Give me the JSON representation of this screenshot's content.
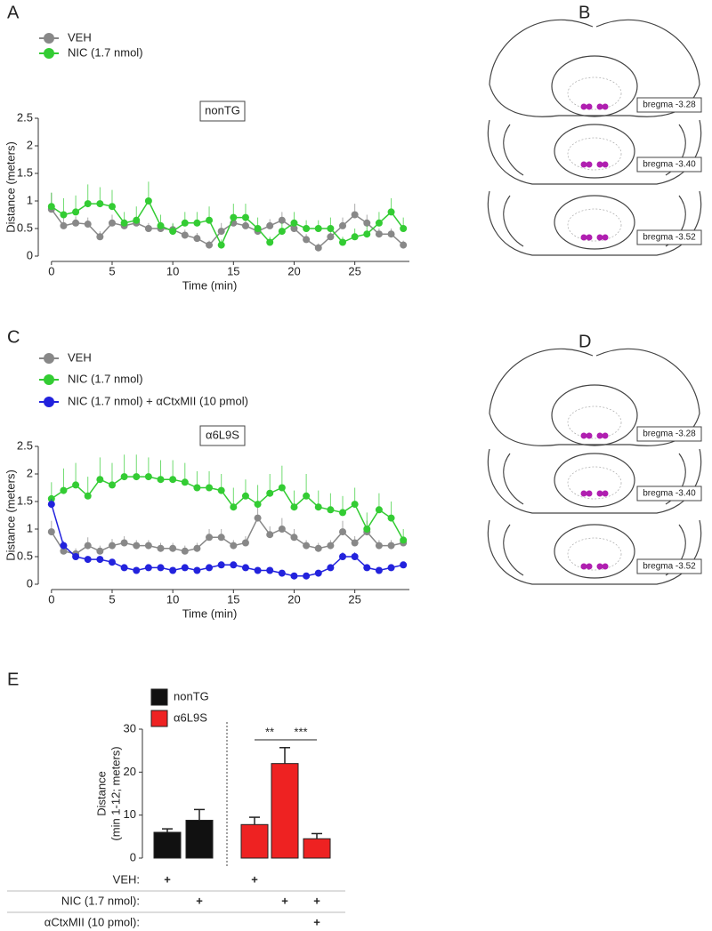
{
  "chart_data": [
    {
      "type": "line",
      "panel": "A",
      "annotation": "nonTG",
      "x_label": "Time (min)",
      "y_label": "Distance (meters)",
      "x": [
        0,
        1,
        2,
        3,
        4,
        5,
        6,
        7,
        8,
        9,
        10,
        11,
        12,
        13,
        14,
        15,
        16,
        17,
        18,
        19,
        20,
        21,
        22,
        23,
        24,
        25,
        26,
        27,
        28,
        29
      ],
      "xlim": [
        -0.5,
        29.5
      ],
      "xticks": [
        0,
        5,
        10,
        15,
        20,
        25
      ],
      "ylim": [
        0,
        2.5
      ],
      "yticks": [
        0,
        0.5,
        1,
        1.5,
        2,
        2.5
      ],
      "series": [
        {
          "name": "VEH",
          "color": "#888888",
          "values": [
            0.85,
            0.55,
            0.6,
            0.58,
            0.35,
            0.6,
            0.55,
            0.6,
            0.5,
            0.5,
            0.48,
            0.38,
            0.32,
            0.2,
            0.45,
            0.6,
            0.55,
            0.45,
            0.55,
            0.65,
            0.5,
            0.3,
            0.15,
            0.35,
            0.55,
            0.75,
            0.6,
            0.4,
            0.4,
            0.2
          ],
          "errors": [
            0.3,
            0.15,
            0.12,
            0.12,
            0.1,
            0.15,
            0.12,
            0.12,
            0.1,
            0.1,
            0.1,
            0.1,
            0.1,
            0.08,
            0.15,
            0.15,
            0.12,
            0.1,
            0.12,
            0.15,
            0.12,
            0.1,
            0.08,
            0.1,
            0.15,
            0.2,
            0.15,
            0.1,
            0.1,
            0.08
          ]
        },
        {
          "name": "NIC (1.7 nmol)",
          "color": "#33cc33",
          "values": [
            0.9,
            0.75,
            0.8,
            0.95,
            0.95,
            0.9,
            0.6,
            0.65,
            1.0,
            0.55,
            0.45,
            0.6,
            0.6,
            0.65,
            0.2,
            0.7,
            0.7,
            0.5,
            0.25,
            0.45,
            0.6,
            0.5,
            0.5,
            0.5,
            0.25,
            0.35,
            0.4,
            0.6,
            0.8,
            0.5
          ],
          "errors": [
            0.25,
            0.3,
            0.3,
            0.35,
            0.3,
            0.3,
            0.2,
            0.25,
            0.35,
            0.2,
            0.15,
            0.2,
            0.2,
            0.25,
            0.1,
            0.25,
            0.25,
            0.2,
            0.1,
            0.15,
            0.2,
            0.15,
            0.15,
            0.2,
            0.1,
            0.15,
            0.15,
            0.2,
            0.25,
            0.2
          ]
        }
      ]
    },
    {
      "type": "line",
      "panel": "C",
      "annotation": "α6L9S",
      "x_label": "Time (min)",
      "y_label": "Distance (meters)",
      "x": [
        0,
        1,
        2,
        3,
        4,
        5,
        6,
        7,
        8,
        9,
        10,
        11,
        12,
        13,
        14,
        15,
        16,
        17,
        18,
        19,
        20,
        21,
        22,
        23,
        24,
        25,
        26,
        27,
        28,
        29
      ],
      "xlim": [
        -0.5,
        29.5
      ],
      "xticks": [
        0,
        5,
        10,
        15,
        20,
        25
      ],
      "ylim": [
        0,
        2.5
      ],
      "yticks": [
        0,
        0.5,
        1,
        1.5,
        2,
        2.5
      ],
      "series": [
        {
          "name": "VEH",
          "color": "#888888",
          "values": [
            0.95,
            0.6,
            0.55,
            0.7,
            0.6,
            0.7,
            0.75,
            0.7,
            0.7,
            0.65,
            0.65,
            0.6,
            0.65,
            0.85,
            0.85,
            0.7,
            0.75,
            1.2,
            0.9,
            1.0,
            0.85,
            0.7,
            0.65,
            0.7,
            0.95,
            0.75,
            0.95,
            0.7,
            0.7,
            0.75
          ],
          "errors": [
            0.2,
            0.15,
            0.1,
            0.15,
            0.1,
            0.12,
            0.12,
            0.1,
            0.1,
            0.1,
            0.1,
            0.1,
            0.1,
            0.15,
            0.15,
            0.1,
            0.12,
            0.3,
            0.15,
            0.2,
            0.15,
            0.1,
            0.1,
            0.1,
            0.2,
            0.12,
            0.2,
            0.1,
            0.1,
            0.1
          ]
        },
        {
          "name": "NIC (1.7 nmol)",
          "color": "#33cc33",
          "values": [
            1.55,
            1.7,
            1.8,
            1.6,
            1.9,
            1.8,
            1.95,
            1.95,
            1.95,
            1.9,
            1.9,
            1.85,
            1.75,
            1.75,
            1.7,
            1.4,
            1.6,
            1.45,
            1.65,
            1.75,
            1.4,
            1.6,
            1.4,
            1.35,
            1.3,
            1.45,
            1.0,
            1.35,
            1.2,
            0.8
          ],
          "errors": [
            0.3,
            0.4,
            0.4,
            0.35,
            0.4,
            0.4,
            0.4,
            0.4,
            0.35,
            0.35,
            0.35,
            0.35,
            0.3,
            0.3,
            0.3,
            0.35,
            0.3,
            0.35,
            0.35,
            0.4,
            0.3,
            0.4,
            0.3,
            0.3,
            0.3,
            0.3,
            0.3,
            0.3,
            0.3,
            0.2
          ]
        },
        {
          "name": "NIC (1.7 nmol) + αCtxMII (10 pmol)",
          "color": "#2222dd",
          "values": [
            1.45,
            0.7,
            0.5,
            0.45,
            0.45,
            0.4,
            0.3,
            0.25,
            0.3,
            0.3,
            0.25,
            0.3,
            0.25,
            0.3,
            0.35,
            0.35,
            0.3,
            0.25,
            0.25,
            0.2,
            0.15,
            0.15,
            0.2,
            0.3,
            0.5,
            0.5,
            0.3,
            0.25,
            0.3,
            0.35
          ],
          "errors": [
            0.1,
            0.08,
            0.06,
            0.05,
            0.05,
            0.05,
            0.05,
            0.05,
            0.05,
            0.05,
            0.05,
            0.05,
            0.05,
            0.05,
            0.05,
            0.05,
            0.05,
            0.05,
            0.05,
            0.05,
            0.04,
            0.04,
            0.04,
            0.05,
            0.08,
            0.08,
            0.05,
            0.05,
            0.05,
            0.05
          ]
        }
      ]
    },
    {
      "type": "bar",
      "panel": "E",
      "y_label": [
        "Distance",
        "(min 1-12; meters)"
      ],
      "ylim": [
        0,
        30
      ],
      "yticks": [
        0,
        10,
        20,
        30
      ],
      "series": [
        {
          "name": "nonTG",
          "color": "#111111",
          "values": [
            6,
            8.8,
            null,
            null,
            null
          ],
          "errors": [
            0.8,
            2.5,
            null,
            null,
            null
          ]
        },
        {
          "name": "α6L9S",
          "color": "#ee2222",
          "values": [
            null,
            null,
            7.8,
            22,
            4.5
          ],
          "errors": [
            null,
            null,
            1.7,
            3.7,
            1.2
          ]
        }
      ],
      "significance": [
        "**",
        "***"
      ],
      "treatments": [
        {
          "label": "VEH:",
          "cells": [
            "+",
            null,
            "+",
            null,
            null
          ]
        },
        {
          "label": "NIC (1.7 nmol):",
          "cells": [
            null,
            "+",
            null,
            "+",
            "+"
          ]
        },
        {
          "label": "αCtxMII (10 pmol):",
          "cells": [
            null,
            null,
            null,
            null,
            "+"
          ]
        }
      ]
    }
  ],
  "diagrams": [
    {
      "panel": "B",
      "labels": [
        "bregma -3.28",
        "bregma -3.40",
        "bregma -3.52"
      ]
    },
    {
      "panel": "D",
      "labels": [
        "bregma -3.28",
        "bregma -3.40",
        "bregma -3.52"
      ]
    }
  ]
}
